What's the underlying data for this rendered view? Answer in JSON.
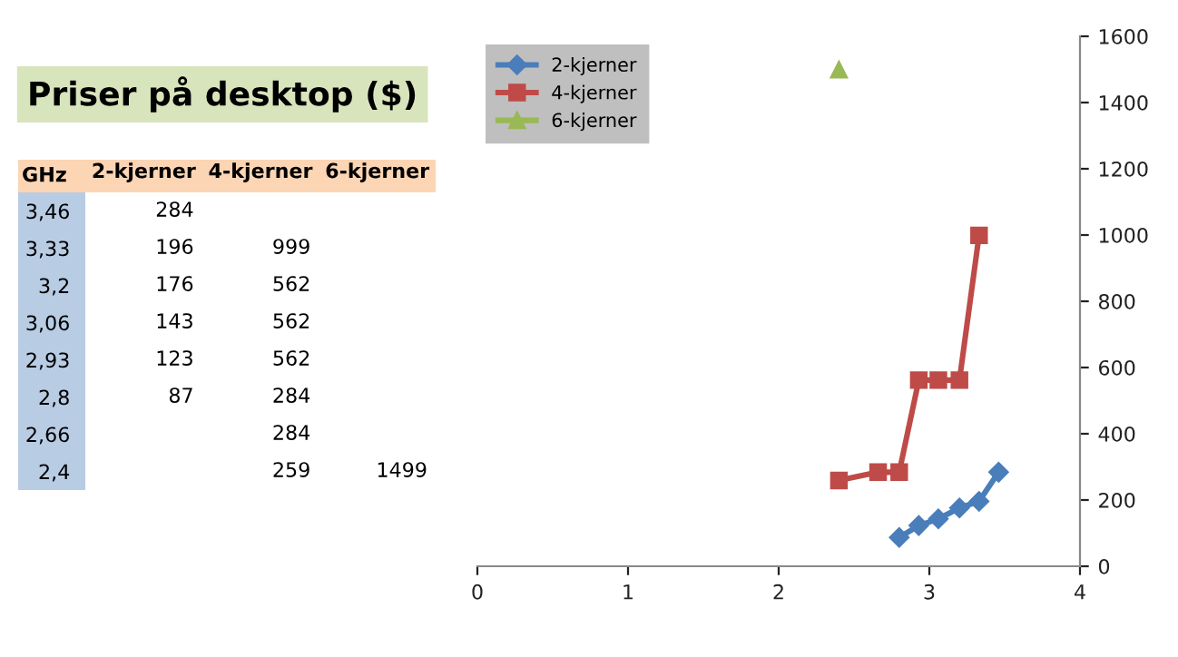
{
  "chart_data": [
    {
      "type": "heatmap",
      "title": "Priser på desktop ($)",
      "annotations": [
        "GHz"
      ],
      "categories": [
        "2-kjerner",
        "4-kjerner",
        "6-kjerner"
      ],
      "data_labels": true,
      "y_categories": [
        "3,46",
        "3,33",
        "3,2",
        "3,06",
        "2,93",
        "2,8",
        "2,66",
        "2,4"
      ],
      "cells": [
        [
          284,
          null,
          null
        ],
        [
          196,
          999,
          null
        ],
        [
          176,
          562,
          null
        ],
        [
          143,
          562,
          null
        ],
        [
          123,
          562,
          null
        ],
        [
          87,
          284,
          null
        ],
        [
          null,
          284,
          null
        ],
        [
          null,
          259,
          1499
        ]
      ]
    },
    {
      "type": "line",
      "series": [
        {
          "name": "2-kjerner",
          "color": "#4a7ebb",
          "marker": "diamond",
          "x": [
            3.46,
            3.33,
            3.2,
            3.06,
            2.93,
            2.8
          ],
          "values": [
            284,
            196,
            176,
            143,
            123,
            87
          ]
        },
        {
          "name": "4-kjerner",
          "color": "#be4b48",
          "marker": "square",
          "x": [
            3.33,
            3.2,
            3.06,
            2.93,
            2.8,
            2.66,
            2.4
          ],
          "values": [
            999,
            562,
            562,
            562,
            284,
            284,
            259
          ]
        },
        {
          "name": "6-kjerner",
          "color": "#98b954",
          "marker": "triangle",
          "x": [
            2.4
          ],
          "values": [
            1499
          ]
        }
      ],
      "xlim": [
        0,
        4
      ],
      "xticks": [
        0,
        1,
        2,
        3,
        4
      ],
      "ylim": [
        0,
        1600
      ],
      "yticks": [
        0,
        200,
        400,
        600,
        800,
        1000,
        1200,
        1400,
        1600
      ],
      "grid": false,
      "legend": "top left",
      "line_style": "solid"
    }
  ]
}
